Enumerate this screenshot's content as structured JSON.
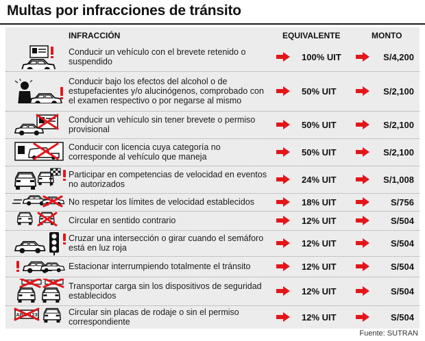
{
  "title": "Multas por infracciones de tránsito",
  "headers": {
    "infraccion": "INFRACCIÓN",
    "equivalente": "EQUIVALENTE",
    "monto": "MONTO"
  },
  "rows": [
    {
      "desc": "Conducir un vehículo con el brevete retenido o suspendido",
      "equiv": "100% UIT",
      "monto": "S/4,200",
      "icon": "car-suspended-license-icon"
    },
    {
      "desc": "Conducir bajo los efectos del alcohol o de estupefacientes y/o alucinógenos, comprobado con el examen respectivo o por negarse al mismo",
      "equiv": "50% UIT",
      "monto": "S/2,100",
      "icon": "drunk-driver-icon"
    },
    {
      "desc": "Conducir un vehículo sin tener brevete o permiso provisional",
      "equiv": "50% UIT",
      "monto": "S/2,100",
      "icon": "no-license-icon"
    },
    {
      "desc": "Conducir con licencia cuya categoría no corresponde al vehículo que maneja",
      "equiv": "50% UIT",
      "monto": "S/2,100",
      "icon": "wrong-license-category-icon"
    },
    {
      "desc": "Participar en competencias de velocidad en eventos no autorizados",
      "equiv": "24% UIT",
      "monto": "S/1,008",
      "icon": "racing-flag-icon"
    },
    {
      "desc": "No respetar los límites de velocidad establecidos",
      "equiv": "18% UIT",
      "monto": "S/756",
      "icon": "speeding-car-icon"
    },
    {
      "desc": "Circular en sentido contrario",
      "equiv": "12% UIT",
      "monto": "S/504",
      "icon": "wrong-way-icon"
    },
    {
      "desc": "Cruzar una intersección o girar cuando el semáforo está en luz roja",
      "equiv": "12% UIT",
      "monto": "S/504",
      "icon": "traffic-light-icon"
    },
    {
      "desc": "Estacionar interrumpiendo totalmente el tránsito",
      "equiv": "12% UIT",
      "monto": "S/504",
      "icon": "blocking-parking-icon"
    },
    {
      "desc": "Transportar carga sin los dispositivos de seguridad establecidos",
      "equiv": "12% UIT",
      "monto": "S/504",
      "icon": "unsecured-cargo-icon"
    },
    {
      "desc": "Circular sin placas de rodaje o sin el permiso correspondiente",
      "equiv": "12% UIT",
      "monto": "S/504",
      "icon": "no-plate-icon"
    }
  ],
  "plate_text": "ABC-123",
  "source": "Fuente: SUTRAN",
  "colors": {
    "accent": "#e3161b",
    "panel": "#ececec"
  }
}
